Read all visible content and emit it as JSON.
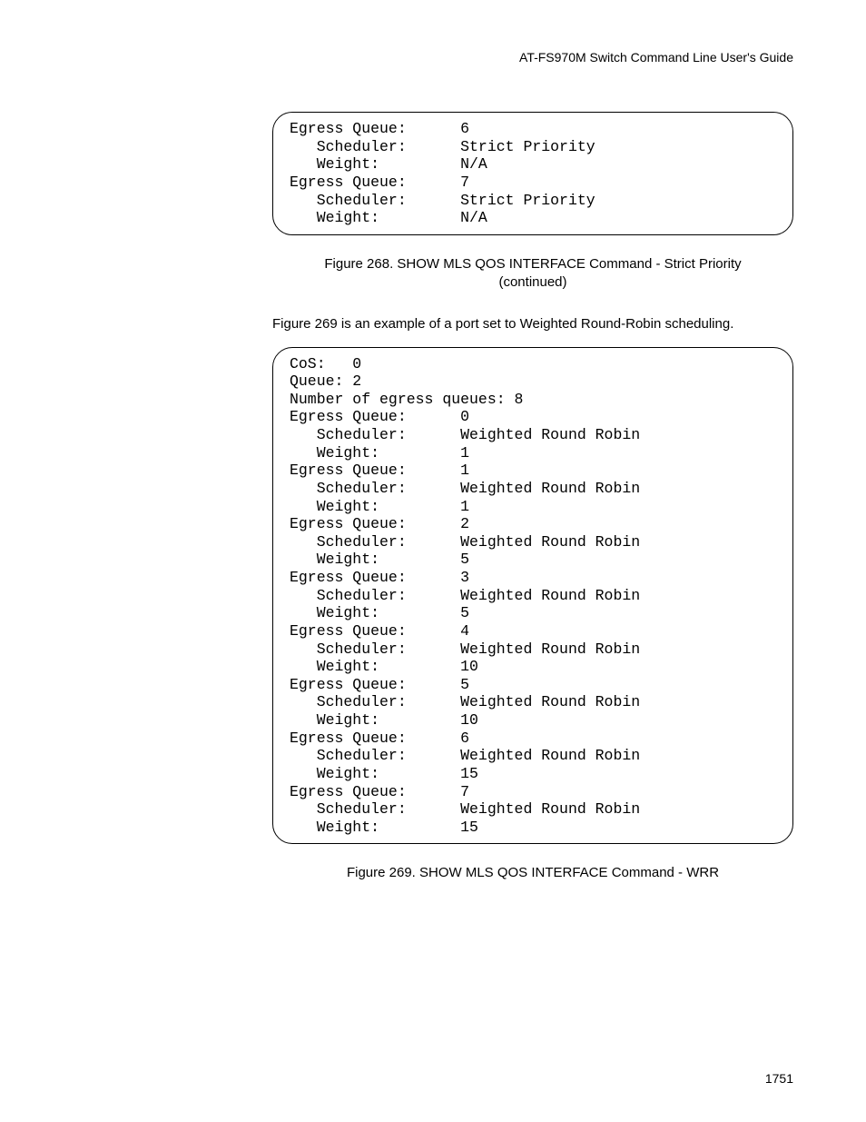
{
  "header": {
    "title": "AT-FS970M Switch Command Line User's Guide"
  },
  "figure268": {
    "box_lines": [
      "Egress Queue:      6",
      "   Scheduler:      Strict Priority",
      "   Weight:         N/A",
      "Egress Queue:      7",
      "   Scheduler:      Strict Priority",
      "   Weight:         N/A"
    ],
    "caption_line1": "Figure 268. SHOW MLS QOS INTERFACE Command - Strict Priority",
    "caption_line2": "(continued)"
  },
  "body": {
    "paragraph": "Figure 269 is an example of a port set to Weighted Round-Robin scheduling."
  },
  "figure269": {
    "box_lines": [
      "CoS:   0",
      "Queue: 2",
      "Number of egress queues: 8",
      "Egress Queue:      0",
      "   Scheduler:      Weighted Round Robin",
      "   Weight:         1",
      "Egress Queue:      1",
      "   Scheduler:      Weighted Round Robin",
      "   Weight:         1",
      "Egress Queue:      2",
      "   Scheduler:      Weighted Round Robin",
      "   Weight:         5",
      "Egress Queue:      3",
      "   Scheduler:      Weighted Round Robin",
      "   Weight:         5",
      "Egress Queue:      4",
      "   Scheduler:      Weighted Round Robin",
      "   Weight:         10",
      "Egress Queue:      5",
      "   Scheduler:      Weighted Round Robin",
      "   Weight:         10",
      "Egress Queue:      6",
      "   Scheduler:      Weighted Round Robin",
      "   Weight:         15",
      "Egress Queue:      7",
      "   Scheduler:      Weighted Round Robin",
      "   Weight:         15",
      ""
    ],
    "caption": "Figure 269. SHOW MLS QOS INTERFACE Command - WRR"
  },
  "page_number": "1751"
}
